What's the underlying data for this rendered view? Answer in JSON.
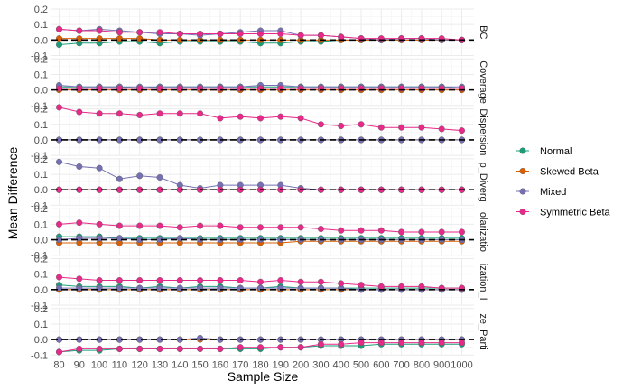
{
  "chart_data": {
    "type": "line",
    "xlabel": "Sample Size",
    "ylabel": "Mean Difference",
    "x": [
      "80",
      "90",
      "100",
      "110",
      "120",
      "130",
      "140",
      "150",
      "160",
      "170",
      "180",
      "190",
      "200",
      "300",
      "400",
      "500",
      "600",
      "700",
      "800",
      "900",
      "1000"
    ],
    "ylim": [
      -0.1,
      0.2
    ],
    "yticks": [
      -0.1,
      0.0,
      0.1,
      0.2
    ],
    "reference_line": 0,
    "legend_position": "right",
    "series_styles": [
      {
        "name": "Normal",
        "color": "#1b9e77"
      },
      {
        "name": "Skewed Beta",
        "color": "#d95f02"
      },
      {
        "name": "Mixed",
        "color": "#7570b3"
      },
      {
        "name": "Symmetric Beta",
        "color": "#e7298a"
      }
    ],
    "panels": [
      {
        "strip": "BC",
        "series": [
          {
            "name": "Normal",
            "values": [
              -0.03,
              -0.02,
              -0.02,
              -0.01,
              -0.01,
              -0.02,
              -0.01,
              -0.01,
              -0.01,
              -0.01,
              -0.02,
              -0.02,
              -0.01,
              -0.01,
              0.0,
              0.0,
              0.0,
              0.0,
              0.0,
              0.0,
              0.0
            ]
          },
          {
            "name": "Skewed Beta",
            "values": [
              0.01,
              0.01,
              0.01,
              0.01,
              0.01,
              0.0,
              0.0,
              0.0,
              0.0,
              0.0,
              0.0,
              0.0,
              0.0,
              0.0,
              0.0,
              0.0,
              0.0,
              0.0,
              0.0,
              0.0,
              0.0
            ]
          },
          {
            "name": "Mixed",
            "values": [
              0.07,
              0.06,
              0.07,
              0.06,
              0.05,
              0.04,
              0.04,
              0.03,
              0.04,
              0.05,
              0.06,
              0.06,
              0.03,
              0.03,
              0.02,
              0.01,
              0.0,
              0.01,
              0.01,
              0.0,
              0.0
            ]
          },
          {
            "name": "Symmetric Beta",
            "values": [
              0.07,
              0.06,
              0.06,
              0.05,
              0.05,
              0.05,
              0.04,
              0.04,
              0.04,
              0.04,
              0.04,
              0.04,
              0.03,
              0.03,
              0.02,
              0.01,
              0.01,
              0.01,
              0.01,
              0.01,
              0.0
            ]
          }
        ]
      },
      {
        "strip": "Coverage",
        "series": [
          {
            "name": "Normal",
            "values": [
              0.02,
              0.02,
              0.02,
              0.02,
              0.01,
              0.02,
              0.02,
              0.02,
              0.02,
              0.02,
              0.02,
              0.02,
              0.02,
              0.02,
              0.02,
              0.02,
              0.02,
              0.02,
              0.02,
              0.02,
              0.01
            ]
          },
          {
            "name": "Skewed Beta",
            "values": [
              0.0,
              0.0,
              0.0,
              0.0,
              0.0,
              0.0,
              0.0,
              0.0,
              0.0,
              0.0,
              0.0,
              0.0,
              0.0,
              0.0,
              0.0,
              0.0,
              0.0,
              0.0,
              0.0,
              0.0,
              0.0
            ]
          },
          {
            "name": "Mixed",
            "values": [
              0.03,
              0.02,
              0.02,
              0.02,
              0.02,
              0.02,
              0.02,
              0.02,
              0.02,
              0.02,
              0.03,
              0.03,
              0.02,
              0.02,
              0.02,
              0.02,
              0.02,
              0.02,
              0.02,
              0.02,
              0.02
            ]
          },
          {
            "name": "Symmetric Beta",
            "values": [
              0.01,
              0.01,
              0.01,
              0.01,
              0.01,
              0.01,
              0.01,
              0.01,
              0.01,
              0.01,
              0.01,
              0.01,
              0.01,
              0.01,
              0.01,
              0.01,
              0.01,
              0.01,
              0.01,
              0.01,
              0.01
            ]
          }
        ]
      },
      {
        "strip": "Dispersion",
        "series": [
          {
            "name": "Normal",
            "values": [
              0.0,
              0.0,
              0.0,
              0.0,
              0.0,
              0.0,
              0.0,
              0.0,
              0.0,
              0.0,
              0.0,
              0.0,
              0.0,
              0.0,
              0.0,
              0.0,
              0.0,
              0.0,
              0.0,
              0.0,
              0.0
            ]
          },
          {
            "name": "Skewed Beta",
            "values": [
              0.0,
              0.0,
              0.0,
              0.0,
              0.0,
              0.0,
              0.0,
              0.0,
              0.0,
              0.0,
              0.0,
              0.0,
              0.0,
              0.0,
              0.0,
              0.0,
              0.0,
              0.0,
              0.0,
              0.0,
              0.0
            ]
          },
          {
            "name": "Mixed",
            "values": [
              0.0,
              0.0,
              0.0,
              0.0,
              0.0,
              0.0,
              0.0,
              0.0,
              0.0,
              0.0,
              0.0,
              0.0,
              0.0,
              0.0,
              0.0,
              0.0,
              0.0,
              0.0,
              0.0,
              0.0,
              0.0
            ]
          },
          {
            "name": "Symmetric Beta",
            "values": [
              0.21,
              0.18,
              0.17,
              0.17,
              0.16,
              0.17,
              0.17,
              0.17,
              0.14,
              0.15,
              0.14,
              0.15,
              0.14,
              0.1,
              0.09,
              0.1,
              0.08,
              0.08,
              0.08,
              0.07,
              0.06
            ]
          }
        ]
      },
      {
        "strip": "p_Diverg",
        "series": [
          {
            "name": "Normal",
            "values": [
              0.0,
              0.0,
              0.0,
              0.0,
              0.0,
              0.0,
              0.0,
              0.0,
              0.0,
              0.0,
              0.0,
              0.0,
              0.0,
              0.0,
              0.0,
              0.0,
              0.0,
              0.0,
              0.0,
              0.0,
              0.0
            ]
          },
          {
            "name": "Skewed Beta",
            "values": [
              0.0,
              0.0,
              0.0,
              0.0,
              0.0,
              0.0,
              0.0,
              0.0,
              0.0,
              0.0,
              0.0,
              0.0,
              0.0,
              0.0,
              0.0,
              0.0,
              0.0,
              0.0,
              0.0,
              0.0,
              0.0
            ]
          },
          {
            "name": "Mixed",
            "values": [
              0.18,
              0.15,
              0.14,
              0.07,
              0.09,
              0.08,
              0.03,
              0.01,
              0.03,
              0.03,
              0.03,
              0.03,
              0.01,
              0.0,
              0.0,
              0.0,
              0.0,
              0.0,
              0.0,
              0.0,
              0.0
            ]
          },
          {
            "name": "Symmetric Beta",
            "values": [
              0.0,
              0.0,
              0.0,
              0.0,
              0.0,
              0.0,
              0.0,
              0.0,
              0.0,
              0.0,
              0.0,
              0.0,
              0.0,
              0.0,
              0.0,
              0.0,
              0.0,
              0.0,
              0.0,
              0.0,
              0.0
            ]
          }
        ]
      },
      {
        "strip": "olarizatio",
        "series": [
          {
            "name": "Normal",
            "values": [
              0.02,
              0.02,
              0.02,
              0.01,
              0.01,
              0.01,
              0.01,
              0.01,
              0.01,
              0.01,
              0.01,
              0.01,
              0.01,
              0.01,
              0.01,
              0.01,
              0.01,
              0.01,
              0.01,
              0.01,
              0.01
            ]
          },
          {
            "name": "Skewed Beta",
            "values": [
              -0.02,
              -0.02,
              -0.02,
              -0.02,
              -0.02,
              -0.02,
              -0.02,
              -0.02,
              -0.02,
              -0.02,
              -0.02,
              -0.02,
              -0.01,
              -0.01,
              -0.01,
              -0.01,
              -0.01,
              -0.01,
              -0.01,
              -0.01,
              -0.01
            ]
          },
          {
            "name": "Mixed",
            "values": [
              0.0,
              0.01,
              0.01,
              0.01,
              0.0,
              0.0,
              0.01,
              0.0,
              0.0,
              0.0,
              0.0,
              0.0,
              0.0,
              0.0,
              0.0,
              0.0,
              0.0,
              0.0,
              0.0,
              0.0,
              0.0
            ]
          },
          {
            "name": "Symmetric Beta",
            "values": [
              0.1,
              0.11,
              0.1,
              0.09,
              0.09,
              0.09,
              0.08,
              0.09,
              0.09,
              0.08,
              0.08,
              0.08,
              0.08,
              0.07,
              0.06,
              0.06,
              0.06,
              0.05,
              0.05,
              0.05,
              0.05
            ]
          }
        ]
      },
      {
        "strip": "ization_I",
        "series": [
          {
            "name": "Normal",
            "values": [
              0.03,
              0.02,
              0.02,
              0.02,
              0.01,
              0.02,
              0.01,
              0.02,
              0.02,
              0.01,
              0.01,
              0.02,
              0.01,
              0.01,
              0.01,
              0.01,
              0.01,
              0.01,
              0.01,
              0.01,
              0.01
            ]
          },
          {
            "name": "Skewed Beta",
            "values": [
              0.0,
              0.0,
              0.0,
              0.0,
              0.0,
              0.0,
              0.0,
              0.0,
              0.0,
              0.0,
              0.0,
              0.0,
              0.0,
              0.0,
              0.0,
              0.0,
              0.0,
              0.0,
              0.0,
              0.0,
              0.0
            ]
          },
          {
            "name": "Mixed",
            "values": [
              0.01,
              0.01,
              0.01,
              0.01,
              0.01,
              0.01,
              0.01,
              0.01,
              0.01,
              0.01,
              0.01,
              0.01,
              0.01,
              0.01,
              0.01,
              0.0,
              0.0,
              0.0,
              0.0,
              0.0,
              0.0
            ]
          },
          {
            "name": "Symmetric Beta",
            "values": [
              0.08,
              0.07,
              0.06,
              0.06,
              0.06,
              0.06,
              0.06,
              0.06,
              0.06,
              0.06,
              0.05,
              0.06,
              0.05,
              0.05,
              0.04,
              0.03,
              0.02,
              0.02,
              0.02,
              0.01,
              0.01
            ]
          }
        ]
      },
      {
        "strip": "ze_Parti",
        "series": [
          {
            "name": "Normal",
            "values": [
              -0.08,
              -0.07,
              -0.07,
              -0.06,
              -0.06,
              -0.06,
              -0.06,
              -0.06,
              -0.06,
              -0.06,
              -0.06,
              -0.05,
              -0.05,
              -0.04,
              -0.04,
              -0.04,
              -0.03,
              -0.03,
              -0.03,
              -0.03,
              -0.03
            ]
          },
          {
            "name": "Skewed Beta",
            "values": [
              0.0,
              0.0,
              0.0,
              0.0,
              0.0,
              0.0,
              0.0,
              0.0,
              0.0,
              0.0,
              0.0,
              0.0,
              0.0,
              0.0,
              0.0,
              0.0,
              0.0,
              0.0,
              0.0,
              0.0,
              0.0
            ]
          },
          {
            "name": "Mixed",
            "values": [
              0.0,
              0.0,
              0.0,
              0.0,
              0.0,
              0.0,
              0.0,
              0.01,
              0.0,
              0.0,
              0.0,
              0.0,
              0.0,
              0.0,
              0.0,
              0.0,
              0.0,
              0.0,
              0.0,
              0.0,
              0.0
            ]
          },
          {
            "name": "Symmetric Beta",
            "values": [
              -0.08,
              -0.06,
              -0.06,
              -0.06,
              -0.06,
              -0.06,
              -0.06,
              -0.06,
              -0.06,
              -0.05,
              -0.05,
              -0.05,
              -0.05,
              -0.03,
              -0.03,
              -0.02,
              -0.02,
              -0.02,
              -0.02,
              -0.02,
              -0.02
            ]
          }
        ]
      }
    ]
  }
}
